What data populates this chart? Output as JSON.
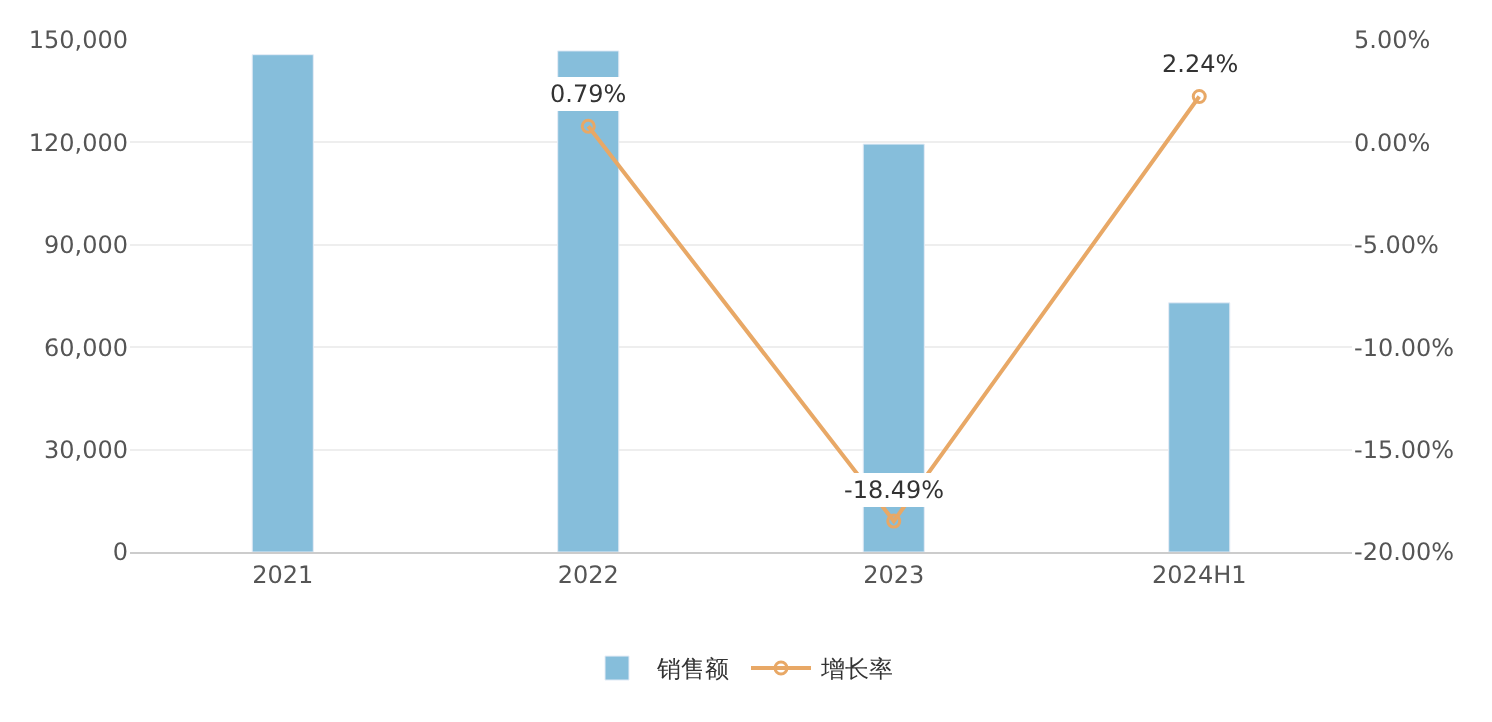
{
  "chart_data": {
    "type": "bar",
    "categories": [
      "2021",
      "2022",
      "2023",
      "2024H1"
    ],
    "series": [
      {
        "name": "销售额",
        "color": "#86bedb",
        "values": [
          145700,
          146800,
          119500,
          73000
        ]
      },
      {
        "name": "增长率",
        "type": "line",
        "axis": "y2",
        "color": "#e8a866",
        "marker": "circle",
        "values": [
          null,
          0.79,
          -18.49,
          2.24
        ],
        "value_labels": [
          null,
          "0.79%",
          "-18.49%",
          "2.24%"
        ]
      }
    ],
    "ylim": [
      0,
      150000
    ],
    "yticks": [
      {
        "value": 0,
        "label": "0"
      },
      {
        "value": 30000,
        "label": "30,000"
      },
      {
        "value": 60000,
        "label": "60,000"
      },
      {
        "value": 90000,
        "label": "90,000"
      },
      {
        "value": 120000,
        "label": "120,000"
      },
      {
        "value": 150000,
        "label": "150,000"
      }
    ],
    "y2lim": [
      -20,
      5
    ],
    "y2ticks": [
      {
        "value": -20,
        "label": "-20.00%"
      },
      {
        "value": -15,
        "label": "-15.00%"
      },
      {
        "value": -10,
        "label": "-10.00%"
      },
      {
        "value": -5,
        "label": "-5.00%"
      },
      {
        "value": 0,
        "label": "0.00%"
      },
      {
        "value": 5,
        "label": "5.00%"
      }
    ],
    "grid": "y",
    "legend": "bottom"
  }
}
